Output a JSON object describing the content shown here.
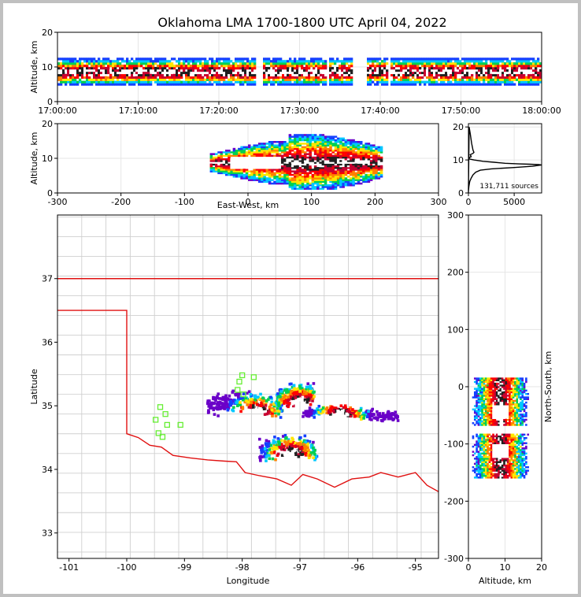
{
  "chart_data": [
    {
      "panel": "time-height",
      "type": "heatmap",
      "title": "Oklahoma LMA 1700-1800 UTC April 04, 2022",
      "ylabel": "Altitude, km",
      "xlabel": "",
      "xlim": [
        "17:00:00",
        "18:00:00"
      ],
      "ylim": [
        0,
        20
      ],
      "x_ticks": [
        "17:00:00",
        "17:10:00",
        "17:20:00",
        "17:30:00",
        "17:40:00",
        "17:50:00",
        "18:00:00"
      ],
      "y_ticks": [
        0,
        10,
        20
      ],
      "grid": true,
      "colormap": "rainbow-density",
      "active_periods": [
        {
          "start_min": 0.0,
          "end_min": 24.5,
          "center_km": 8.5
        },
        {
          "start_min": 25.5,
          "end_min": 33.5,
          "center_km": 8.5
        },
        {
          "start_min": 33.8,
          "end_min": 36.5,
          "center_km": 8.6
        },
        {
          "start_min": 38.3,
          "end_min": 41.0,
          "center_km": 8.8
        },
        {
          "start_min": 41.3,
          "end_min": 60.0,
          "center_km": 8.6
        }
      ],
      "color_stops": [
        "#6a00c8",
        "#1540ff",
        "#00c8ff",
        "#00d050",
        "#ffe600",
        "#ff8000",
        "#ff0000",
        "#c80030",
        "#202020",
        "#ffffff"
      ]
    },
    {
      "panel": "east-west-height",
      "type": "heatmap",
      "xlabel": "East-West, km",
      "ylabel": "Altitude, km",
      "xlim": [
        -300,
        300
      ],
      "ylim": [
        0,
        20
      ],
      "x_ticks": [
        -300,
        -200,
        -100,
        0,
        100,
        200,
        300
      ],
      "y_ticks": [
        0,
        10,
        20
      ],
      "grid": true,
      "clusters": [
        {
          "x_range": [
            -60,
            210
          ],
          "center_alt_km": 8.5,
          "core_x": [
            -30,
            50
          ]
        }
      ]
    },
    {
      "panel": "altitude-histogram",
      "type": "line",
      "xlim": [
        0,
        8000
      ],
      "ylim": [
        0,
        21
      ],
      "x_ticks": [
        0,
        5000
      ],
      "y_ticks": [
        0,
        10,
        20
      ],
      "annotation": "131,711 sources",
      "x": [
        0,
        80,
        200,
        350,
        500,
        600,
        500,
        200,
        250,
        300,
        80,
        80,
        600,
        1600,
        2800,
        4000,
        5500,
        6700,
        7700,
        8000,
        7000,
        5000,
        2500,
        1300,
        800,
        500,
        300,
        150,
        50,
        0
      ],
      "y": [
        0,
        20,
        18,
        15,
        13,
        12.3,
        12,
        11.6,
        11.3,
        11,
        10.7,
        10.3,
        10.0,
        9.6,
        9.3,
        9.0,
        8.8,
        8.7,
        8.6,
        8.5,
        8.1,
        7.7,
        7.3,
        6.9,
        6.3,
        5.5,
        4.5,
        3.5,
        2.0,
        0.5
      ]
    },
    {
      "panel": "plan-view-map",
      "type": "heatmap",
      "xlabel": "Longitude",
      "ylabel": "Latitude",
      "xlim": [
        -101.2,
        -94.6
      ],
      "ylim": [
        32.6,
        38.0
      ],
      "x_ticks": [
        -101,
        -100,
        -99,
        -98,
        -97,
        -96,
        -95
      ],
      "y_ticks": [
        33,
        34,
        35,
        36,
        37
      ],
      "cells": [
        {
          "lon_range": [
            -98.6,
            -97.3
          ],
          "lat_range": [
            34.75,
            35.25
          ],
          "core_lon": -97.75,
          "core_lat": 34.9
        },
        {
          "lon_range": [
            -97.4,
            -96.75
          ],
          "lat_range": [
            34.85,
            35.35
          ],
          "core_lon": -97.0,
          "core_lat": 35.05
        },
        {
          "lon_range": [
            -96.95,
            -95.3
          ],
          "lat_range": [
            34.75,
            35.0
          ],
          "core_lon": -96.3,
          "core_lat": 34.85
        },
        {
          "lon_range": [
            -97.7,
            -96.7
          ],
          "lat_range": [
            34.0,
            34.55
          ],
          "core_lon": -97.15,
          "core_lat": 34.25
        }
      ],
      "stations": [
        {
          "lon": -98.0,
          "lat": 35.48
        },
        {
          "lon": -97.8,
          "lat": 35.45
        },
        {
          "lon": -98.05,
          "lat": 35.38
        },
        {
          "lon": -98.08,
          "lat": 35.25
        },
        {
          "lon": -97.98,
          "lat": 35.18
        },
        {
          "lon": -99.42,
          "lat": 34.98
        },
        {
          "lon": -99.33,
          "lat": 34.87
        },
        {
          "lon": -99.5,
          "lat": 34.78
        },
        {
          "lon": -99.3,
          "lat": 34.7
        },
        {
          "lon": -99.07,
          "lat": 34.7
        },
        {
          "lon": -99.45,
          "lat": 34.57
        },
        {
          "lon": -99.38,
          "lat": 34.51
        }
      ]
    },
    {
      "panel": "north-south-height",
      "type": "heatmap",
      "xlabel": "Altitude, km",
      "ylabel": "North-South, km",
      "xlim": [
        0,
        20
      ],
      "ylim": [
        -300,
        300
      ],
      "x_ticks": [
        0,
        10,
        20
      ],
      "y_ticks": [
        -300,
        -200,
        -100,
        0,
        100,
        200,
        300
      ],
      "clusters": [
        {
          "y_range": [
            -68,
            16
          ],
          "core_y": -45,
          "center_alt_km": 8.5
        },
        {
          "y_range": [
            -160,
            -82
          ],
          "core_y": -113,
          "center_alt_km": 8.5
        }
      ]
    }
  ]
}
